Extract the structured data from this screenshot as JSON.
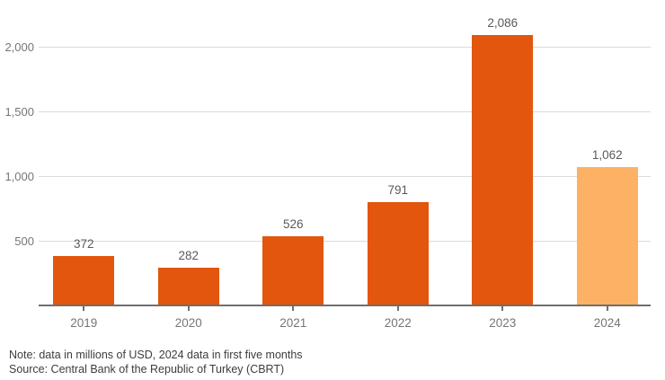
{
  "chart_data": {
    "type": "bar",
    "categories": [
      "2019",
      "2020",
      "2021",
      "2022",
      "2023",
      "2024"
    ],
    "values": [
      372,
      282,
      526,
      791,
      2086,
      1062
    ],
    "value_labels": [
      "372",
      "282",
      "526",
      "791",
      "2,086",
      "1,062"
    ],
    "bar_colors": [
      "#e2560d",
      "#e2560d",
      "#e2560d",
      "#e2560d",
      "#e2560d",
      "#fcb164"
    ],
    "y_ticks": [
      500,
      1000,
      1500,
      2000
    ],
    "y_tick_labels": [
      "500",
      "1,000",
      "1,500",
      "2,000"
    ],
    "ylim": [
      0,
      2360
    ],
    "grid": true,
    "legend": "none",
    "title": "",
    "xlabel": "",
    "ylabel": ""
  },
  "colors": {
    "bar_primary": "#e2560d",
    "bar_highlight": "#fcb164",
    "gridline": "#dbdbdb",
    "axis_line": "#6f6f6f",
    "tick_label": "#767676",
    "value_label": "#5a5a5a",
    "note_text": "#3d3d3d"
  },
  "footer": {
    "note": "Note: data in millions of USD, 2024 data in first five months",
    "source": "Source: Central Bank of the Republic of Turkey (CBRT)"
  }
}
